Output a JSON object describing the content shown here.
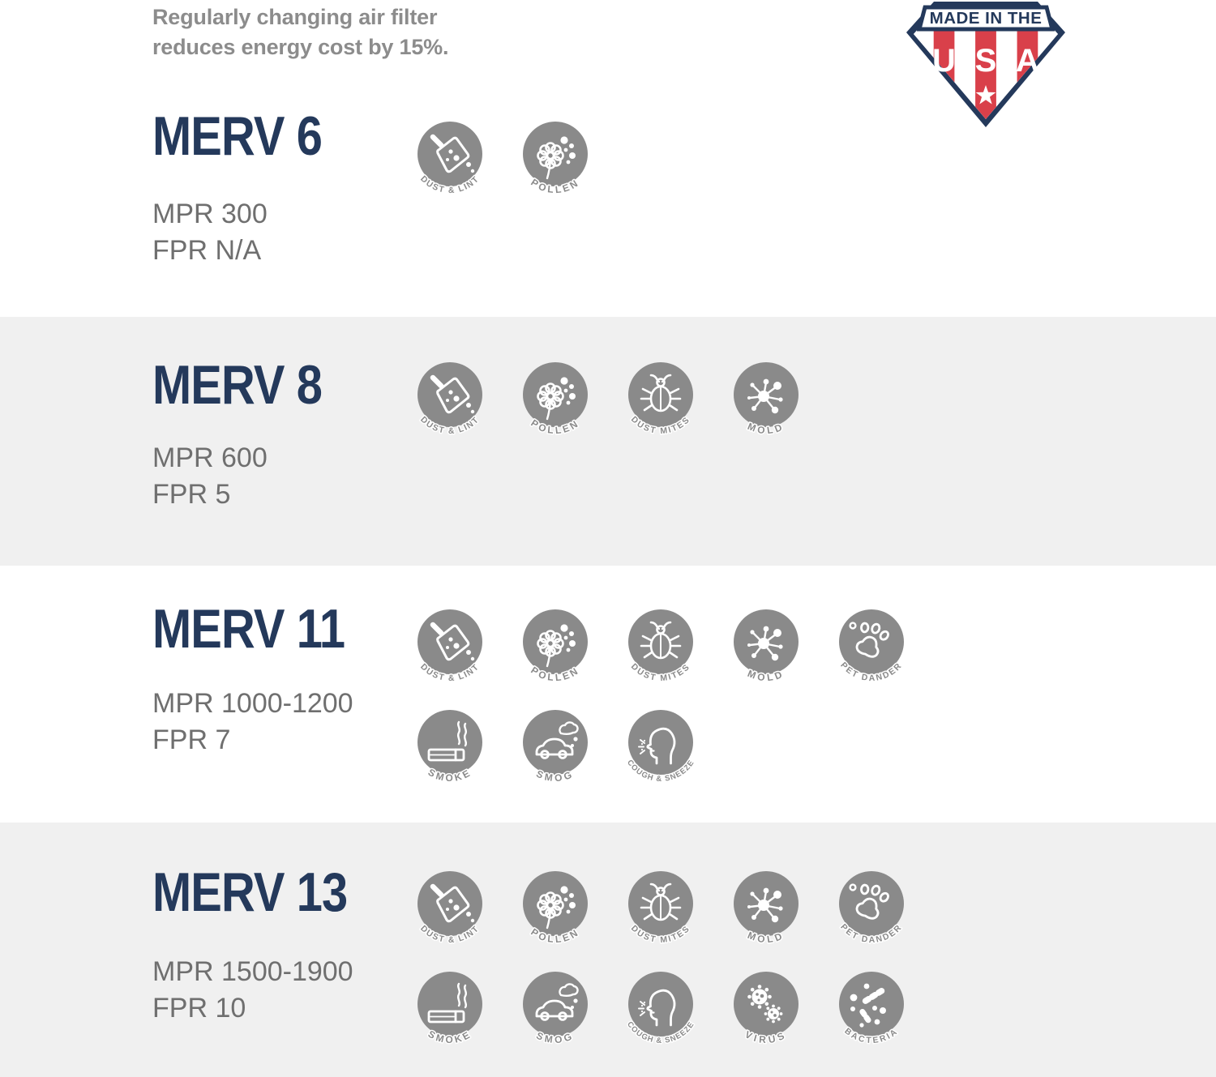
{
  "page": {
    "tagline_line1": "Regularly changing air filter",
    "tagline_line2": "reduces energy cost by 15%."
  },
  "badge": {
    "banner": "MADE IN THE",
    "letter_u": "U",
    "letter_s": "S",
    "letter_a": "A"
  },
  "colors": {
    "navy": "#24395B",
    "red": "#D9404A",
    "icon_gray": "#8A8A8A",
    "label_gray": "#8A8A8A",
    "spec_gray": "#6F6F6F",
    "tagline_gray": "#8C8C8C",
    "band_gray": "#F0F0F0"
  },
  "rows": [
    {
      "name": "MERV 6",
      "mpr": "MPR 300",
      "fpr": "FPR N/A",
      "icons": [
        {
          "id": "dust-lint",
          "label": "DUST & LINT"
        },
        {
          "id": "pollen",
          "label": "POLLEN"
        }
      ]
    },
    {
      "name": "MERV 8",
      "mpr": "MPR 600",
      "fpr": "FPR 5",
      "icons": [
        {
          "id": "dust-lint",
          "label": "DUST & LINT"
        },
        {
          "id": "pollen",
          "label": "POLLEN"
        },
        {
          "id": "dust-mites",
          "label": "DUST MITES"
        },
        {
          "id": "mold",
          "label": "MOLD"
        }
      ]
    },
    {
      "name": "MERV 11",
      "mpr": "MPR 1000-1200",
      "fpr": "FPR 7",
      "icons": [
        {
          "id": "dust-lint",
          "label": "DUST & LINT"
        },
        {
          "id": "pollen",
          "label": "POLLEN"
        },
        {
          "id": "dust-mites",
          "label": "DUST MITES"
        },
        {
          "id": "mold",
          "label": "MOLD"
        },
        {
          "id": "pet-dander",
          "label": "PET DANDER"
        },
        {
          "id": "smoke",
          "label": "SMOKE"
        },
        {
          "id": "smog",
          "label": "SMOG"
        },
        {
          "id": "cough-sneeze",
          "label": "COUGH & SNEEZE"
        }
      ]
    },
    {
      "name": "MERV 13",
      "mpr": "MPR 1500-1900",
      "fpr": "FPR 10",
      "icons": [
        {
          "id": "dust-lint",
          "label": "DUST & LINT"
        },
        {
          "id": "pollen",
          "label": "POLLEN"
        },
        {
          "id": "dust-mites",
          "label": "DUST MITES"
        },
        {
          "id": "mold",
          "label": "MOLD"
        },
        {
          "id": "pet-dander",
          "label": "PET DANDER"
        },
        {
          "id": "smoke",
          "label": "SMOKE"
        },
        {
          "id": "smog",
          "label": "SMOG"
        },
        {
          "id": "cough-sneeze",
          "label": "COUGH & SNEEZE"
        },
        {
          "id": "virus",
          "label": "VIRUS"
        },
        {
          "id": "bacteria",
          "label": "BACTERIA"
        }
      ]
    }
  ]
}
